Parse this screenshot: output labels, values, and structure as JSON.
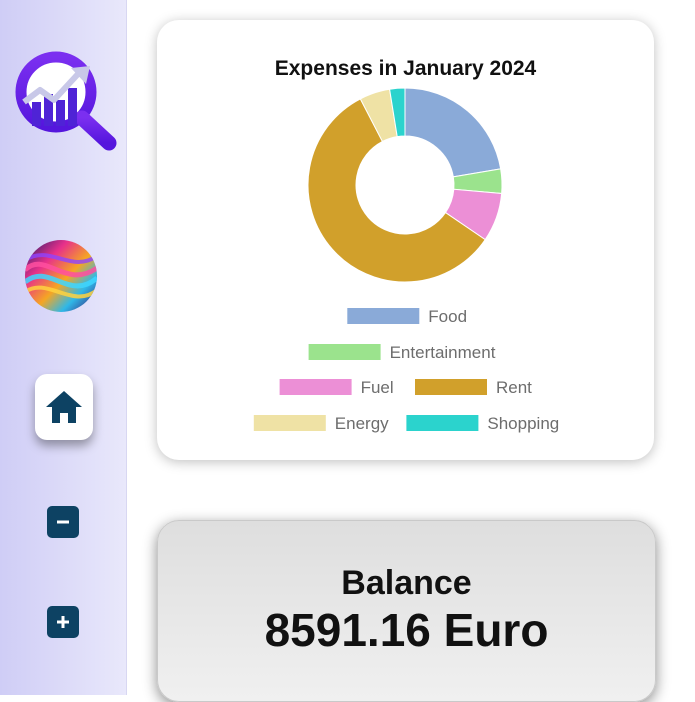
{
  "sidebar": {
    "logo_icon": "analytics-search-icon",
    "avatar_icon": "colorful-swirl-avatar",
    "home_icon": "home-icon",
    "minus_icon": "minus-icon",
    "plus_icon": "plus-icon",
    "accent_color": "#0d4263",
    "logo_color": "#6e1fe8"
  },
  "expenses": {
    "title": "Expenses in January 2024"
  },
  "chart_data": {
    "type": "pie",
    "title": "Expenses in January 2024",
    "donut": true,
    "legend_position": "bottom",
    "slices": [
      {
        "label": "Food",
        "value": 22,
        "color": "#8aaad8"
      },
      {
        "label": "Entertainment",
        "value": 4,
        "color": "#9be38d"
      },
      {
        "label": "Fuel",
        "value": 8,
        "color": "#ec8fd6"
      },
      {
        "label": "Rent",
        "value": 57,
        "color": "#d1a02b"
      },
      {
        "label": "Energy",
        "value": 5,
        "color": "#efe2a5"
      },
      {
        "label": "Shopping",
        "value": 2.5,
        "color": "#2bd3cd"
      }
    ]
  },
  "balance": {
    "title": "Balance",
    "value": "8591.16 Euro"
  }
}
